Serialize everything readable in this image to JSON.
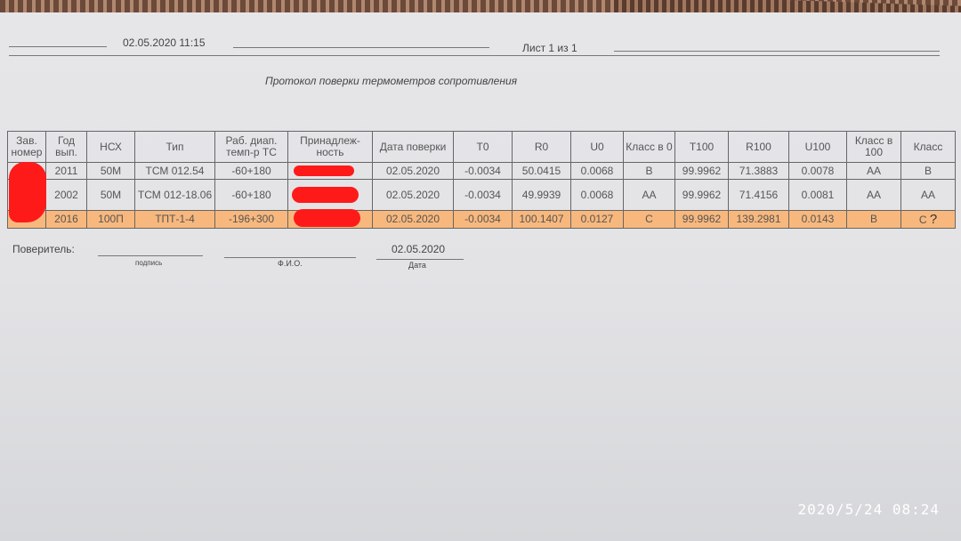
{
  "header": {
    "datetime": "02.05.2020 11:15",
    "sheet": "Лист 1 из 1"
  },
  "title": "Протокол поверки термометров сопротивления",
  "table": {
    "columns": [
      "Зав. номер",
      "Год вып.",
      "НСХ",
      "Тип",
      "Раб. диап. темп-р ТС",
      "Принадлеж-ность",
      "Дата поверки",
      "T0",
      "R0",
      "U0",
      "Класс в 0",
      "T100",
      "R100",
      "U100",
      "Класс в 100",
      "Класс"
    ],
    "rows": [
      [
        "",
        "2011",
        "50М",
        "ТСМ 012.54",
        "-60+180",
        "",
        "02.05.2020",
        "-0.0034",
        "50.0415",
        "0.0068",
        "B",
        "99.9962",
        "71.3883",
        "0.0078",
        "AA",
        "B"
      ],
      [
        "",
        "2002",
        "50М",
        "ТСМ 012-18.06",
        "-60+180",
        "",
        "02.05.2020",
        "-0.0034",
        "49.9939",
        "0.0068",
        "AA",
        "99.9962",
        "71.4156",
        "0.0081",
        "AA",
        "AA"
      ],
      [
        "",
        "2016",
        "100П",
        "ТПТ-1-4",
        "-196+300",
        "",
        "02.05.2020",
        "-0.0034",
        "100.1407",
        "0.0127",
        "C",
        "99.9962",
        "139.2981",
        "0.0143",
        "B",
        "C"
      ]
    ],
    "annotation": "?"
  },
  "footer": {
    "verifier_label": "Поверитель:",
    "signature_caption": "подпись",
    "name_caption": "Ф.И.О.",
    "date_value": "02.05.2020",
    "date_caption": "Дата"
  },
  "photo_timestamp": "2020/5/24  08:24",
  "colors": {
    "highlight": "#ffaa5a",
    "redaction": "#ff1a1a"
  }
}
